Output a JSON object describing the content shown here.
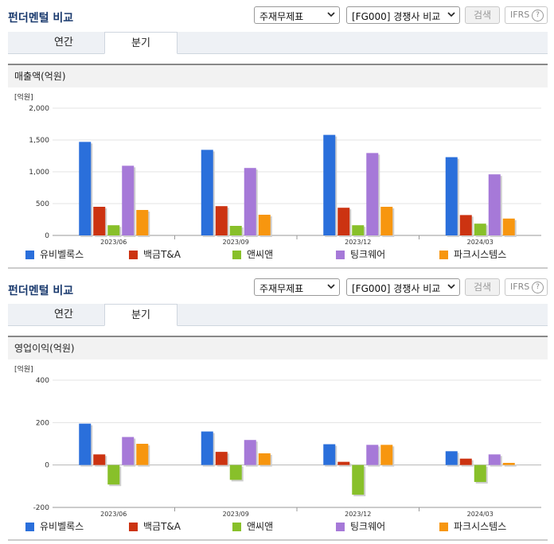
{
  "sections": [
    {
      "title": "펀더멘털 비교",
      "report_select": "주재무제표",
      "peer_select": "[FG000] 경쟁사 비교",
      "search_button": "검색",
      "ifrs_label": "IFRS",
      "help_symbol": "?",
      "tabs": [
        {
          "label": "연간"
        },
        {
          "label": "분기"
        }
      ],
      "active_tab": "분기",
      "chart_header": "매출액(억원)",
      "unit_label": "[억원]"
    },
    {
      "title": "펀더멘털 비교",
      "report_select": "주재무제표",
      "peer_select": "[FG000] 경쟁사 비교",
      "search_button": "검색",
      "ifrs_label": "IFRS",
      "help_symbol": "?",
      "tabs": [
        {
          "label": "연간"
        },
        {
          "label": "분기"
        }
      ],
      "active_tab": "분기",
      "chart_header": "영업이익(억원)",
      "unit_label": "[억원]"
    }
  ],
  "colors": {
    "유비벨록스": "#2a6fdb",
    "백금T&A": "#cc3311",
    "앤씨앤": "#88c02a",
    "팅크웨어": "#a679d8",
    "파크시스템스": "#f7960f"
  },
  "chart_data": [
    {
      "type": "bar",
      "title": "매출액(억원)",
      "ylabel": "[억원]",
      "categories": [
        "2023/06",
        "2023/09",
        "2023/12",
        "2024/03"
      ],
      "ylim": [
        0,
        2000
      ],
      "yticks": [
        0,
        500,
        1000,
        1500,
        2000
      ],
      "ytick_labels": [
        "0",
        "500",
        "1,000",
        "1,500",
        "2,000"
      ],
      "series": [
        {
          "name": "유비벨록스",
          "values": [
            1470,
            1345,
            1580,
            1230
          ]
        },
        {
          "name": "백금T&A",
          "values": [
            450,
            460,
            435,
            320
          ]
        },
        {
          "name": "앤씨앤",
          "values": [
            160,
            150,
            160,
            185
          ]
        },
        {
          "name": "팅크웨어",
          "values": [
            1095,
            1060,
            1295,
            960
          ]
        },
        {
          "name": "파크시스템스",
          "values": [
            400,
            325,
            450,
            265
          ]
        }
      ],
      "legend_position": "bottom"
    },
    {
      "type": "bar",
      "title": "영업이익(억원)",
      "ylabel": "[억원]",
      "categories": [
        "2023/06",
        "2023/09",
        "2023/12",
        "2024/03"
      ],
      "ylim": [
        -200,
        400
      ],
      "yticks": [
        -200,
        0,
        200,
        400
      ],
      "ytick_labels": [
        "-200",
        "0",
        "200",
        "400"
      ],
      "series": [
        {
          "name": "유비벨록스",
          "values": [
            195,
            158,
            98,
            65
          ]
        },
        {
          "name": "백금T&A",
          "values": [
            50,
            62,
            15,
            30
          ]
        },
        {
          "name": "앤씨앤",
          "values": [
            -92,
            -70,
            -140,
            -80
          ]
        },
        {
          "name": "팅크웨어",
          "values": [
            132,
            118,
            95,
            50
          ]
        },
        {
          "name": "파크시스템스",
          "values": [
            100,
            55,
            95,
            10
          ]
        }
      ],
      "legend_position": "bottom"
    }
  ]
}
